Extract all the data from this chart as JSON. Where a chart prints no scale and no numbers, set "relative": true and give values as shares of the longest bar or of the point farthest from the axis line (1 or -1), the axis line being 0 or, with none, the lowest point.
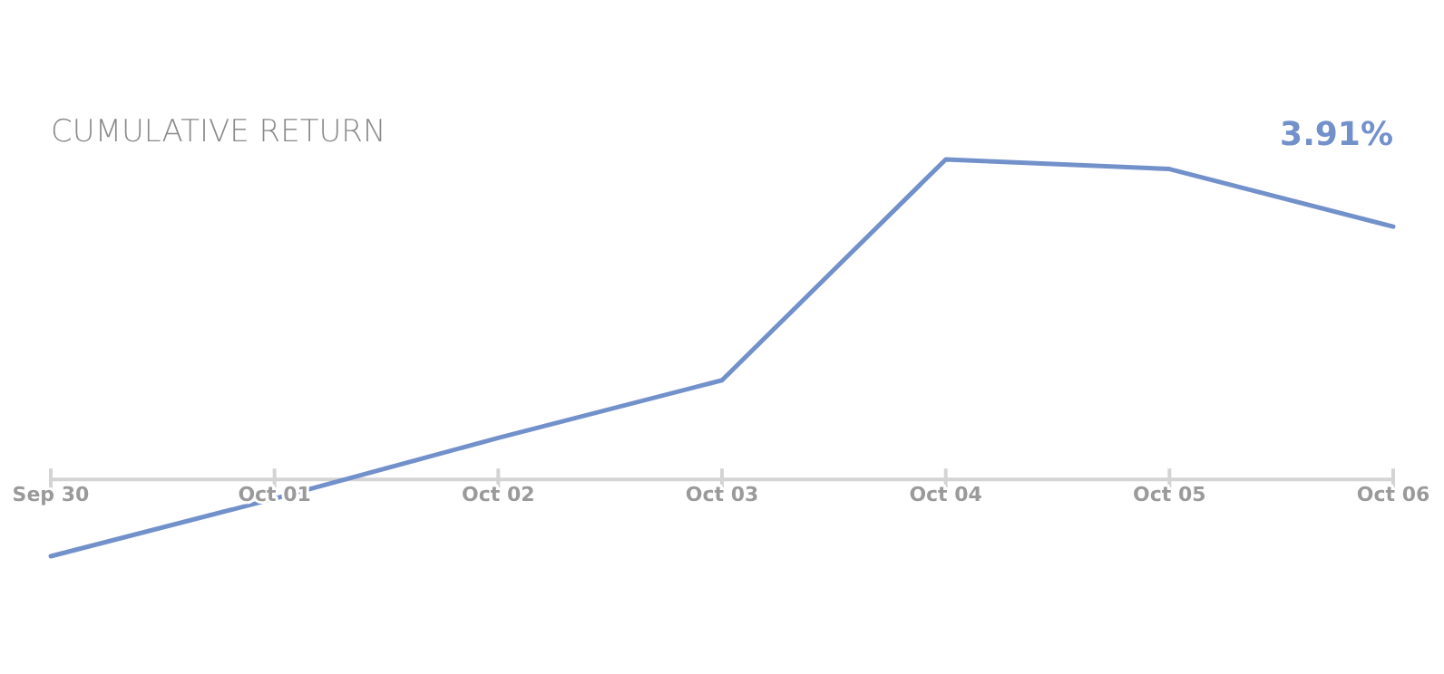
{
  "chart_data": {
    "type": "line",
    "title": "CUMULATIVE RETURN",
    "relative": true,
    "categories": [
      "Sep 30",
      "Oct 01",
      "Oct 02",
      "Oct 03",
      "Oct 04",
      "Oct 05",
      "Oct 06"
    ],
    "series": [
      {
        "color": "#7291cb",
        "values": [
          -0.24,
          -0.06,
          0.13,
          0.31,
          1,
          0.97,
          0.79
        ]
      }
    ],
    "annotations": [
      "3.91%"
    ],
    "marker": "none",
    "line_style": "solid"
  }
}
